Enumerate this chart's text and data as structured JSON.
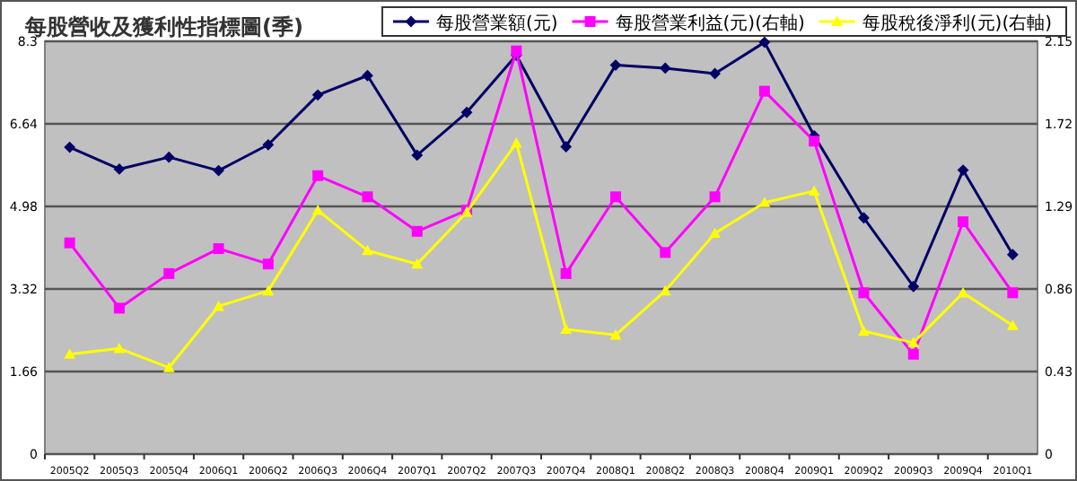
{
  "chart_data": {
    "type": "line",
    "title": "每股營收及獲利性指標圖(季)",
    "categories": [
      "2005Q2",
      "2005Q3",
      "2005Q4",
      "2006Q1",
      "2006Q2",
      "2006Q3",
      "2006Q4",
      "2007Q1",
      "2007Q2",
      "2007Q3",
      "2007Q4",
      "2008Q1",
      "2008Q2",
      "2008Q3",
      "2008Q4",
      "2009Q1",
      "2009Q2",
      "2009Q3",
      "2009Q4",
      "2010Q1"
    ],
    "series": [
      {
        "name": "每股營業額(元)",
        "color": "#000066",
        "marker": "diamond",
        "values": [
          6.17,
          5.73,
          5.97,
          5.7,
          6.22,
          7.22,
          7.61,
          6.01,
          6.87,
          8.02,
          6.18,
          7.82,
          7.76,
          7.65,
          8.28,
          6.4,
          4.75,
          3.37,
          5.71,
          4.01
        ]
      },
      {
        "name": "每股營業利益(元)(右軸)",
        "color": "#ff00ff",
        "marker": "square",
        "axis": "y2",
        "values": [
          1.1,
          0.76,
          0.94,
          1.07,
          0.99,
          1.45,
          1.34,
          1.16,
          1.27,
          2.1,
          0.94,
          1.34,
          1.05,
          1.34,
          1.89,
          1.63,
          0.84,
          0.52,
          1.21,
          0.84
        ]
      },
      {
        "name": "每股稅後淨利(元)(右軸)",
        "color": "#ffff00",
        "marker": "triangle",
        "axis": "y2",
        "values": [
          0.52,
          0.55,
          0.45,
          0.77,
          0.85,
          1.27,
          1.06,
          0.99,
          1.26,
          1.62,
          0.65,
          0.62,
          0.85,
          1.15,
          1.31,
          1.37,
          0.64,
          0.58,
          0.84,
          0.67
        ]
      }
    ],
    "ylim": [
      0,
      8.3
    ],
    "yticks": [
      0,
      1.66,
      3.32,
      4.98,
      6.64,
      8.3
    ],
    "y2lim": [
      0,
      2.15
    ],
    "y2ticks": [
      0,
      0.43,
      0.86,
      1.29,
      1.72,
      2.15
    ],
    "grid": "y",
    "legend": "top right",
    "line_style": "solid"
  }
}
